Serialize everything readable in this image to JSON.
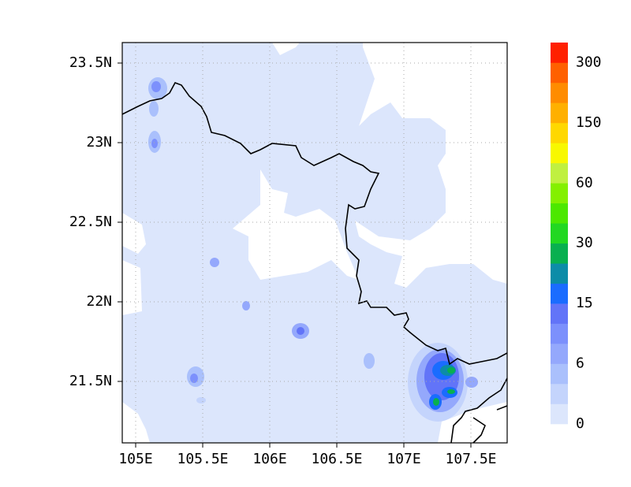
{
  "map": {
    "lon_labels": [
      "105E",
      "105.5E",
      "106E",
      "106.5E",
      "107E",
      "107.5E"
    ],
    "lat_labels": [
      "23.5N",
      "23N",
      "22.5N",
      "22N",
      "21.5N"
    ],
    "colorbar": {
      "labels": [
        "0",
        "6",
        "15",
        "30",
        "60",
        "150",
        "300"
      ],
      "colors": [
        "#dce6fc",
        "#c4d4fc",
        "#aac0fc",
        "#94a8fc",
        "#7c90fc",
        "#6274f8",
        "#1a6cff",
        "#0c8ca8",
        "#08b050",
        "#22d822",
        "#4ce800",
        "#84f000",
        "#c0f040",
        "#f8f800",
        "#ffd800",
        "#ffb000",
        "#ff8c00",
        "#ff6000",
        "#ff2000"
      ]
    }
  }
}
